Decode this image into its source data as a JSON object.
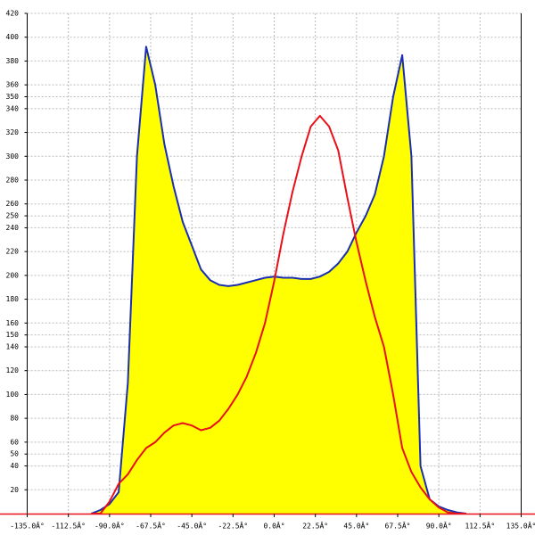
{
  "chart_data": {
    "type": "line",
    "x": [
      -100,
      -95,
      -90,
      -85,
      -80,
      -75,
      -70,
      -65,
      -60,
      -55,
      -50,
      -45,
      -40,
      -35,
      -30,
      -25,
      -20,
      -15,
      -10,
      -5,
      0,
      5,
      10,
      15,
      20,
      25,
      30,
      35,
      40,
      45,
      50,
      55,
      60,
      65,
      70,
      75,
      80,
      85,
      90,
      95,
      100,
      105
    ],
    "series": [
      {
        "color": "#1a2fb0",
        "fill": "#ffff00",
        "values": [
          0,
          3,
          8,
          18,
          110,
          300,
          392,
          360,
          310,
          275,
          245,
          225,
          205,
          196,
          192,
          191,
          192,
          194,
          196,
          198,
          199,
          198,
          198,
          197,
          197,
          199,
          203,
          210,
          220,
          236,
          250,
          268,
          300,
          350,
          385,
          300,
          40,
          12,
          6,
          3,
          1,
          0
        ]
      },
      {
        "color": "#e8101a",
        "values": [
          0,
          0,
          10,
          25,
          33,
          45,
          55,
          60,
          68,
          74,
          76,
          74,
          70,
          72,
          78,
          88,
          100,
          115,
          135,
          160,
          195,
          235,
          270,
          300,
          325,
          334,
          325,
          305,
          265,
          228,
          195,
          165,
          140,
          100,
          55,
          35,
          22,
          12,
          5,
          1,
          0,
          0
        ]
      }
    ],
    "xlim": [
      -135,
      135
    ],
    "xticks": [
      {
        "value": -135,
        "label": "-135.0Â°"
      },
      {
        "value": -112.5,
        "label": "-112.5Â°"
      },
      {
        "value": -90,
        "label": "-90.0Â°"
      },
      {
        "value": -67.5,
        "label": "-67.5Â°"
      },
      {
        "value": -45,
        "label": "-45.0Â°"
      },
      {
        "value": -22.5,
        "label": "-22.5Â°"
      },
      {
        "value": 0,
        "label": "0.0Â°"
      },
      {
        "value": 22.5,
        "label": "22.5Â°"
      },
      {
        "value": 45,
        "label": "45.0Â°"
      },
      {
        "value": 67.5,
        "label": "67.5Â°"
      },
      {
        "value": 90,
        "label": "90.0Â°"
      },
      {
        "value": 112.5,
        "label": "112.5Â°"
      },
      {
        "value": 135,
        "label": "135.0Â°"
      }
    ],
    "ylim": [
      0,
      420
    ],
    "yticks": [
      20,
      40,
      50,
      60,
      80,
      100,
      120,
      140,
      150,
      160,
      180,
      200,
      220,
      240,
      250,
      260,
      280,
      300,
      320,
      340,
      350,
      360,
      380,
      400,
      420
    ],
    "grid": true
  }
}
